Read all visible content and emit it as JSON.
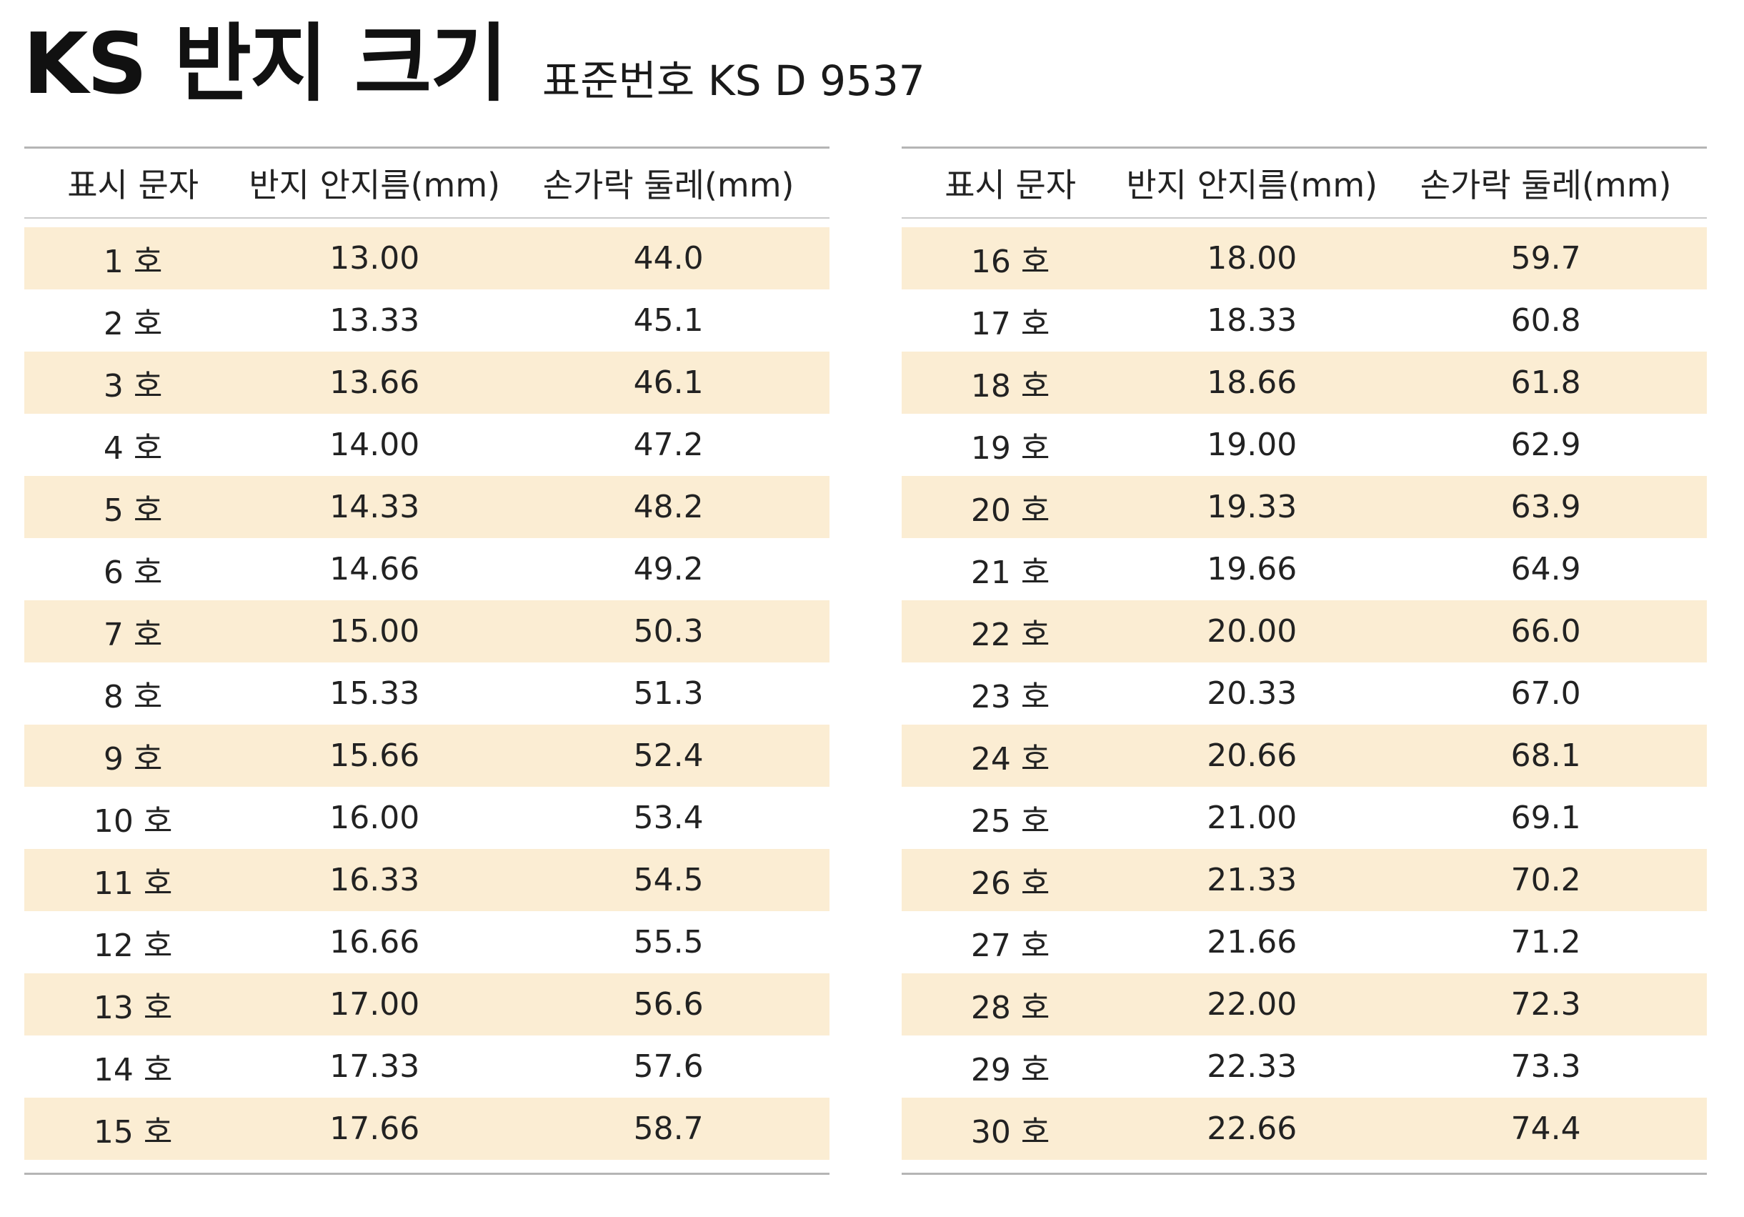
{
  "title": "KS 반지 크기",
  "subtitle": "표준번호 KS D 9537",
  "headers": [
    "표시 문자",
    "반지 안지름(mm)",
    "손가락 둘레(mm)"
  ],
  "colors": {
    "stripe": "#fbedd3",
    "rule": "#b5b5b5"
  },
  "tables": [
    {
      "rows": [
        [
          "1 호",
          "13.00",
          "44.0"
        ],
        [
          "2 호",
          "13.33",
          "45.1"
        ],
        [
          "3 호",
          "13.66",
          "46.1"
        ],
        [
          "4 호",
          "14.00",
          "47.2"
        ],
        [
          "5 호",
          "14.33",
          "48.2"
        ],
        [
          "6 호",
          "14.66",
          "49.2"
        ],
        [
          "7 호",
          "15.00",
          "50.3"
        ],
        [
          "8 호",
          "15.33",
          "51.3"
        ],
        [
          "9 호",
          "15.66",
          "52.4"
        ],
        [
          "10 호",
          "16.00",
          "53.4"
        ],
        [
          "11 호",
          "16.33",
          "54.5"
        ],
        [
          "12 호",
          "16.66",
          "55.5"
        ],
        [
          "13 호",
          "17.00",
          "56.6"
        ],
        [
          "14 호",
          "17.33",
          "57.6"
        ],
        [
          "15 호",
          "17.66",
          "58.7"
        ]
      ]
    },
    {
      "rows": [
        [
          "16 호",
          "18.00",
          "59.7"
        ],
        [
          "17 호",
          "18.33",
          "60.8"
        ],
        [
          "18 호",
          "18.66",
          "61.8"
        ],
        [
          "19 호",
          "19.00",
          "62.9"
        ],
        [
          "20 호",
          "19.33",
          "63.9"
        ],
        [
          "21 호",
          "19.66",
          "64.9"
        ],
        [
          "22 호",
          "20.00",
          "66.0"
        ],
        [
          "23 호",
          "20.33",
          "67.0"
        ],
        [
          "24 호",
          "20.66",
          "68.1"
        ],
        [
          "25 호",
          "21.00",
          "69.1"
        ],
        [
          "26 호",
          "21.33",
          "70.2"
        ],
        [
          "27 호",
          "21.66",
          "71.2"
        ],
        [
          "28 호",
          "22.00",
          "72.3"
        ],
        [
          "29 호",
          "22.33",
          "73.3"
        ],
        [
          "30 호",
          "22.66",
          "74.4"
        ]
      ]
    }
  ]
}
